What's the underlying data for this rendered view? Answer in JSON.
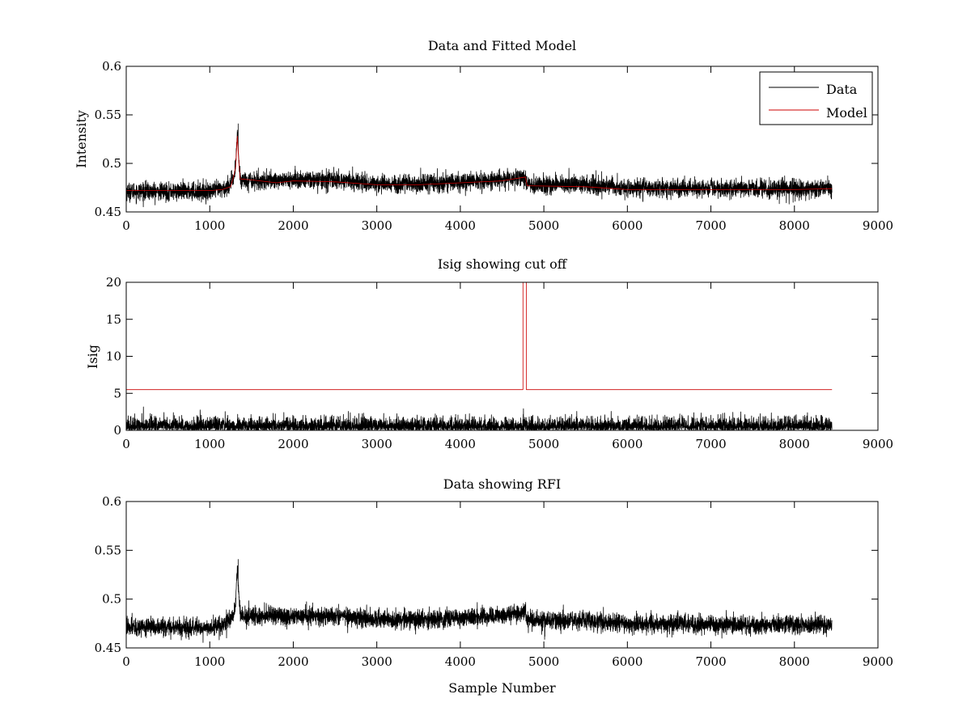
{
  "chart_data": [
    {
      "type": "line",
      "title": "Data and Fitted Model",
      "xlabel": "",
      "ylabel": "Intensity",
      "xlim": [
        0,
        9000
      ],
      "ylim": [
        0.45,
        0.6
      ],
      "xticks": [
        0,
        1000,
        2000,
        3000,
        4000,
        5000,
        6000,
        7000,
        8000,
        9000
      ],
      "xtick_labels": [
        "0",
        "1000",
        "2000",
        "3000",
        "4000",
        "5000",
        "6000",
        "7000",
        "8000",
        "9000"
      ],
      "yticks": [
        0.45,
        0.5,
        0.55,
        0.6
      ],
      "ytick_labels": [
        "0.45",
        "0.5",
        "0.55",
        "0.6"
      ],
      "grid": false,
      "legend": {
        "position": "top-right",
        "entries": [
          "Data",
          "Model"
        ]
      },
      "series": [
        {
          "name": "Data",
          "color": "#000000",
          "kind": "noisy",
          "x_range": [
            0,
            8450
          ],
          "noise": 0.0045,
          "baseline": [
            [
              0,
              0.471
            ],
            [
              1000,
              0.471
            ],
            [
              1180,
              0.474
            ],
            [
              1280,
              0.482
            ],
            [
              1310,
              0.495
            ],
            [
              1330,
              0.535
            ],
            [
              1350,
              0.5
            ],
            [
              1370,
              0.483
            ],
            [
              1600,
              0.482
            ],
            [
              2000,
              0.483
            ],
            [
              2500,
              0.483
            ],
            [
              3000,
              0.479
            ],
            [
              3500,
              0.479
            ],
            [
              4000,
              0.481
            ],
            [
              4500,
              0.483
            ],
            [
              4780,
              0.487
            ],
            [
              4800,
              0.478
            ],
            [
              5500,
              0.478
            ],
            [
              6000,
              0.475
            ],
            [
              7000,
              0.474
            ],
            [
              8000,
              0.474
            ],
            [
              8450,
              0.474
            ]
          ],
          "spikes": [
            [
              1340,
              0.541
            ]
          ]
        },
        {
          "name": "Model",
          "color": "#cc0000",
          "kind": "line",
          "points": [
            [
              0,
              0.472
            ],
            [
              1000,
              0.472
            ],
            [
              1150,
              0.473
            ],
            [
              1250,
              0.476
            ],
            [
              1290,
              0.488
            ],
            [
              1310,
              0.496
            ],
            [
              1330,
              0.528
            ],
            [
              1345,
              0.505
            ],
            [
              1365,
              0.484
            ],
            [
              1500,
              0.483
            ],
            [
              1800,
              0.48
            ],
            [
              2000,
              0.482
            ],
            [
              2500,
              0.481
            ],
            [
              3000,
              0.478
            ],
            [
              3500,
              0.478
            ],
            [
              4000,
              0.48
            ],
            [
              4500,
              0.482
            ],
            [
              4780,
              0.486
            ],
            [
              4800,
              0.477
            ],
            [
              5500,
              0.476
            ],
            [
              6000,
              0.473
            ],
            [
              7000,
              0.473
            ],
            [
              8000,
              0.473
            ],
            [
              8450,
              0.474
            ]
          ]
        }
      ]
    },
    {
      "type": "line",
      "title": "Isig showing cut off",
      "xlabel": "",
      "ylabel": "Isig",
      "xlim": [
        0,
        9000
      ],
      "ylim": [
        0,
        20
      ],
      "xticks": [
        0,
        1000,
        2000,
        3000,
        4000,
        5000,
        6000,
        7000,
        8000,
        9000
      ],
      "xtick_labels": [
        "0",
        "1000",
        "2000",
        "3000",
        "4000",
        "5000",
        "6000",
        "7000",
        "8000",
        "9000"
      ],
      "yticks": [
        0,
        5,
        10,
        15,
        20
      ],
      "ytick_labels": [
        "0",
        "5",
        "10",
        "15",
        "20"
      ],
      "grid": false,
      "series": [
        {
          "color": "#000000",
          "kind": "abs-noise",
          "x_range": [
            0,
            8450
          ],
          "noise": 1.0,
          "max": 4.0
        },
        {
          "color": "#cc0000",
          "kind": "line",
          "points": [
            [
              0,
              5.5
            ],
            [
              4750,
              5.5
            ],
            [
              4750,
              20
            ],
            [
              4790,
              20
            ],
            [
              4790,
              5.5
            ],
            [
              8450,
              5.5
            ]
          ]
        }
      ]
    },
    {
      "type": "line",
      "title": "Data showing RFI",
      "xlabel": "Sample Number",
      "ylabel": "",
      "xlim": [
        0,
        9000
      ],
      "ylim": [
        0.45,
        0.6
      ],
      "xticks": [
        0,
        1000,
        2000,
        3000,
        4000,
        5000,
        6000,
        7000,
        8000,
        9000
      ],
      "xtick_labels": [
        "0",
        "1000",
        "2000",
        "3000",
        "4000",
        "5000",
        "6000",
        "7000",
        "8000",
        "9000"
      ],
      "yticks": [
        0.45,
        0.5,
        0.55,
        0.6
      ],
      "ytick_labels": [
        "0.45",
        "0.5",
        "0.55",
        "0.6"
      ],
      "grid": false,
      "series": [
        {
          "color": "#000000",
          "kind": "noisy",
          "x_range": [
            0,
            8450
          ],
          "noise": 0.0045,
          "baseline": [
            [
              0,
              0.471
            ],
            [
              1000,
              0.471
            ],
            [
              1180,
              0.474
            ],
            [
              1280,
              0.482
            ],
            [
              1310,
              0.495
            ],
            [
              1330,
              0.535
            ],
            [
              1350,
              0.5
            ],
            [
              1370,
              0.483
            ],
            [
              1600,
              0.482
            ],
            [
              2000,
              0.483
            ],
            [
              2500,
              0.483
            ],
            [
              3000,
              0.479
            ],
            [
              3500,
              0.479
            ],
            [
              4000,
              0.481
            ],
            [
              4500,
              0.483
            ],
            [
              4780,
              0.487
            ],
            [
              4800,
              0.478
            ],
            [
              5500,
              0.478
            ],
            [
              6000,
              0.475
            ],
            [
              7000,
              0.474
            ],
            [
              8000,
              0.474
            ],
            [
              8450,
              0.474
            ]
          ],
          "spikes": [
            [
              1340,
              0.541
            ]
          ]
        }
      ]
    }
  ]
}
